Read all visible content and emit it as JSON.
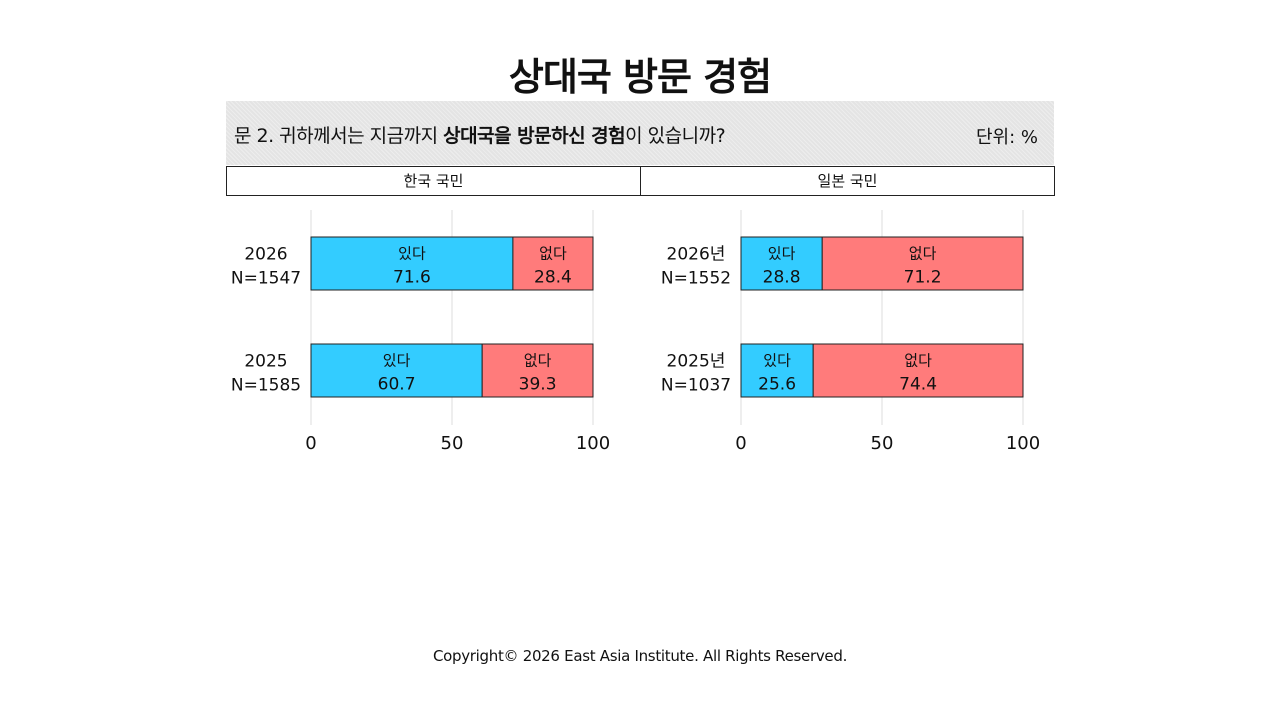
{
  "title": "상대국 방문 경험",
  "question": {
    "prefix": "문 2. 귀하께서는 지금까지 ",
    "bold1": "상대국을 방문하신 경험",
    "suffix": "이 있습니까?",
    "unit": "단위: %"
  },
  "panels": {
    "korea_header": "한국 국민",
    "japan_header": "일본 국민"
  },
  "footer": "Copyright© 2026 East Asia Institute. All Rights Reserved.",
  "colors": {
    "yes": "#33CCFF",
    "no": "#FF7B7B",
    "grid": "#dddddd"
  },
  "chart_data": [
    {
      "type": "bar",
      "orientation": "horizontal",
      "stacked": true,
      "panel": "한국 국민",
      "categories": [
        {
          "year": "2026",
          "n": "N=1547"
        },
        {
          "year": "2025",
          "n": "N=1585"
        }
      ],
      "series": [
        {
          "name": "있다",
          "values": [
            71.6,
            60.7
          ]
        },
        {
          "name": "없다",
          "values": [
            28.4,
            39.3
          ]
        }
      ],
      "xlim": [
        0,
        100
      ],
      "xticks": [
        0,
        50,
        100
      ],
      "grid": true
    },
    {
      "type": "bar",
      "orientation": "horizontal",
      "stacked": true,
      "panel": "일본 국민",
      "categories": [
        {
          "year": "2026년",
          "n": "N=1552"
        },
        {
          "year": "2025년",
          "n": "N=1037"
        }
      ],
      "series": [
        {
          "name": "있다",
          "values": [
            28.8,
            25.6
          ]
        },
        {
          "name": "없다",
          "values": [
            71.2,
            74.4
          ]
        }
      ],
      "xlim": [
        0,
        100
      ],
      "xticks": [
        0,
        50,
        100
      ],
      "grid": true
    }
  ]
}
